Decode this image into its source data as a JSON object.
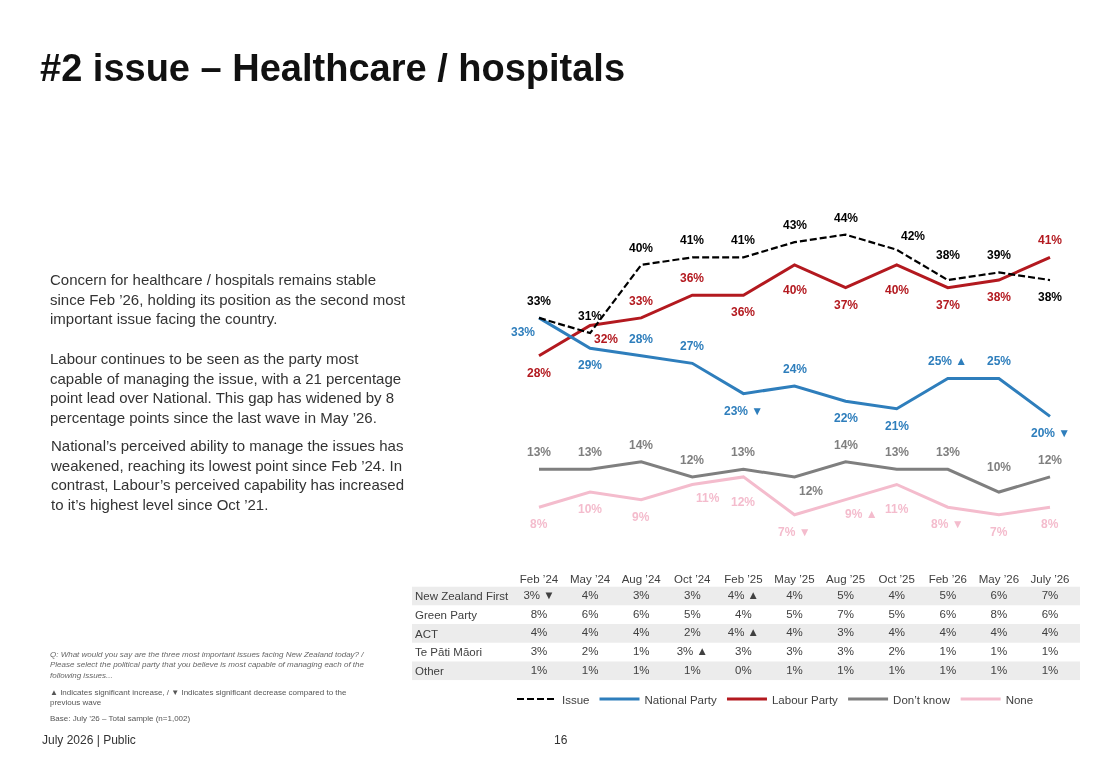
{
  "chart_data": [
    {
      "type": "line",
      "title": "#2 issue – Healthcare / hospitals",
      "categories": [
        null,
        null,
        null,
        null,
        null,
        null,
        null,
        null,
        null,
        null,
        null
      ],
      "series": [
        {
          "name": "Issue",
          "color": "#000000",
          "line_style": "dashed",
          "values": [
            33,
            31,
            40,
            41,
            41,
            43,
            44,
            42,
            38,
            39,
            38
          ],
          "value_labels": [
            "33%",
            "31%",
            "40%",
            "41%",
            "41%",
            "43%",
            "44%",
            "42%",
            "38%",
            "39%",
            "38%"
          ]
        },
        {
          "name": "National Party",
          "color": "#2e7ebc",
          "values": [
            33,
            29,
            28,
            27,
            23,
            24,
            22,
            21,
            25,
            25,
            20
          ],
          "value_labels": [
            "33%",
            "29%",
            "28%",
            "27%",
            "23% ▼",
            "24%",
            "22%",
            "21%",
            "25% ▲",
            "25%",
            "20% ▼"
          ]
        },
        {
          "name": "Labour Party",
          "color": "#b3191f",
          "values": [
            28,
            32,
            33,
            36,
            36,
            40,
            37,
            40,
            37,
            38,
            41
          ],
          "value_labels": [
            "28%",
            "32%",
            "33%",
            "36%",
            "36%",
            "40%",
            "37%",
            "40%",
            "37%",
            "38%",
            "41%"
          ]
        },
        {
          "name": "Don’t know",
          "color": "#7f7f7f",
          "values": [
            13,
            13,
            14,
            12,
            13,
            12,
            14,
            13,
            13,
            10,
            12
          ],
          "value_labels": [
            "13%",
            "13%",
            "14%",
            "12%",
            "13%",
            "12%",
            "14%",
            "13%",
            "13%",
            "10%",
            "12%"
          ]
        },
        {
          "name": "None",
          "color": "#f4bccd",
          "values": [
            8,
            10,
            9,
            11,
            12,
            7,
            9,
            11,
            8,
            7,
            8
          ],
          "value_labels": [
            "8%",
            "10%",
            "9%",
            "11%",
            "12%",
            "7% ▼",
            "9% ▲",
            "11%",
            "8% ▼",
            "7%",
            "8%"
          ]
        }
      ],
      "legend": "bottom",
      "annotations": [
        "Concern for healthcare / hospitals remains stable\nsince Feb ’26, holding its position as the second most\nimportant issue facing the country.",
        "Labour continues to be seen as the party most\ncapable of managing the issue, with a 21 percentage\npoint lead over National. This gap has widened by 8\npercentage points since the last wave in May ’26.",
        "National’s perceived ability to manage the issues has\nweakened, reaching its lowest point since Feb ’24. In\ncontrast, Labour’s perceived capability has increased\nto it’s highest level since Oct ’21.",
        "Q: What would you say are the three most important issues facing New Zealand today? /\nPlease select the political party that you believe is most capable of managing each of the\nfollowing issues...",
        "▲ Indicates significant increase, / ▼ Indicates significant decrease compared to the\nprevious wave",
        "Base: July ’26 – Total sample (n=1,002)",
        "July 2026 | Public",
        "16"
      ]
    },
    {
      "type": "other",
      "categories": [
        "Feb ’24",
        "May ’24",
        "Aug ’24",
        "Oct ’24",
        "Feb ’25",
        "May ’25",
        "Aug ’25",
        "Oct ’25",
        "Feb ’26",
        "May ’26",
        "July ’26"
      ],
      "series": [
        {
          "name": "New Zealand First",
          "values": [
            3,
            4,
            3,
            3,
            4,
            4,
            5,
            4,
            5,
            6,
            7
          ],
          "value_labels": [
            "3% ▼",
            "4%",
            "3%",
            "3%",
            "4% ▲",
            "4%",
            "5%",
            "4%",
            "5%",
            "6%",
            "7%"
          ]
        },
        {
          "name": "Green Party",
          "values": [
            8,
            6,
            6,
            5,
            4,
            5,
            7,
            5,
            6,
            8,
            6
          ],
          "value_labels": [
            "8%",
            "6%",
            "6%",
            "5%",
            "4%",
            "5%",
            "7%",
            "5%",
            "6%",
            "8%",
            "6%"
          ]
        },
        {
          "name": "ACT",
          "values": [
            4,
            4,
            4,
            2,
            4,
            4,
            3,
            4,
            4,
            4,
            4
          ],
          "value_labels": [
            "4%",
            "4%",
            "4%",
            "2%",
            "4% ▲",
            "4%",
            "3%",
            "4%",
            "4%",
            "4%",
            "4%"
          ]
        },
        {
          "name": "Te Pāti Māori",
          "values": [
            3,
            2,
            1,
            3,
            3,
            3,
            3,
            2,
            1,
            1,
            1
          ],
          "value_labels": [
            "3%",
            "2%",
            "1%",
            "3% ▲",
            "3%",
            "3%",
            "3%",
            "2%",
            "1%",
            "1%",
            "1%"
          ]
        },
        {
          "name": "Other",
          "values": [
            1,
            1,
            1,
            1,
            0,
            1,
            1,
            1,
            1,
            1,
            1
          ],
          "value_labels": [
            "1%",
            "1%",
            "1%",
            "1%",
            "0%",
            "1%",
            "1%",
            "1%",
            "1%",
            "1%",
            "1%"
          ]
        }
      ]
    }
  ]
}
